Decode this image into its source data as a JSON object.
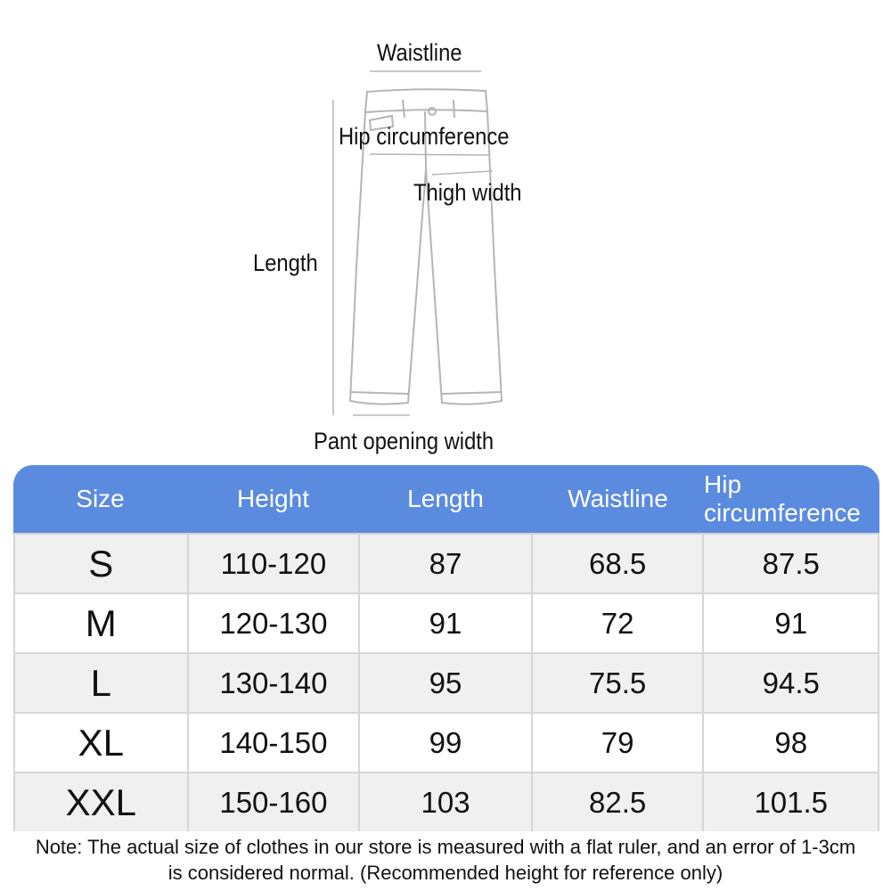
{
  "diagram": {
    "labels": {
      "waistline": "Waistline",
      "hip": "Hip circumference",
      "thigh": "Thigh width",
      "length": "Length",
      "opening": "Pant opening width"
    },
    "line_color": "#b5b5b5"
  },
  "table": {
    "header_color": "#5b8bdf",
    "headers": [
      "Size",
      "Height",
      "Length",
      "Waistline",
      "Hip circumference"
    ],
    "rows": [
      [
        "S",
        "110-120",
        "87",
        "68.5",
        "87.5"
      ],
      [
        "M",
        "120-130",
        "91",
        "72",
        "91"
      ],
      [
        "L",
        "130-140",
        "95",
        "75.5",
        "94.5"
      ],
      [
        "XL",
        "140-150",
        "99",
        "79",
        "98"
      ],
      [
        "XXL",
        "150-160",
        "103",
        "82.5",
        "101.5"
      ]
    ]
  },
  "note": {
    "line1": "Note: The actual size of clothes in our store is measured with a flat ruler, and an error of 1-3cm",
    "line2": "is considered normal. (Recommended height for reference only)"
  }
}
